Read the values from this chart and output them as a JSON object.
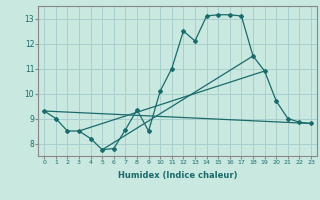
{
  "title": "",
  "xlabel": "Humidex (Indice chaleur)",
  "ylabel": "",
  "xlim": [
    -0.5,
    23.5
  ],
  "ylim": [
    7.5,
    13.5
  ],
  "xticks": [
    0,
    1,
    2,
    3,
    4,
    5,
    6,
    7,
    8,
    9,
    10,
    11,
    12,
    13,
    14,
    15,
    16,
    17,
    18,
    19,
    20,
    21,
    22,
    23
  ],
  "yticks": [
    8,
    9,
    10,
    11,
    12,
    13
  ],
  "bg_color": "#c8e8e0",
  "line_color": "#1a6b6b",
  "grid_color": "#aacfcf",
  "main_x": [
    0,
    1,
    2,
    3,
    4,
    5,
    6,
    7,
    8,
    9,
    10,
    11,
    12,
    13,
    14,
    15,
    16,
    17,
    18,
    19,
    20,
    21,
    22,
    23
  ],
  "main_y": [
    9.3,
    9.0,
    8.5,
    8.5,
    8.2,
    7.75,
    7.8,
    8.55,
    9.35,
    8.5,
    10.1,
    11.0,
    12.5,
    12.1,
    13.1,
    13.15,
    13.15,
    13.1,
    11.5,
    10.9,
    9.7,
    9.0,
    8.85,
    8.8
  ],
  "line1_x": [
    0,
    23
  ],
  "line1_y": [
    9.3,
    8.8
  ],
  "line2_x": [
    3,
    19
  ],
  "line2_y": [
    8.5,
    10.9
  ],
  "line3_x": [
    5,
    18
  ],
  "line3_y": [
    7.75,
    11.5
  ]
}
